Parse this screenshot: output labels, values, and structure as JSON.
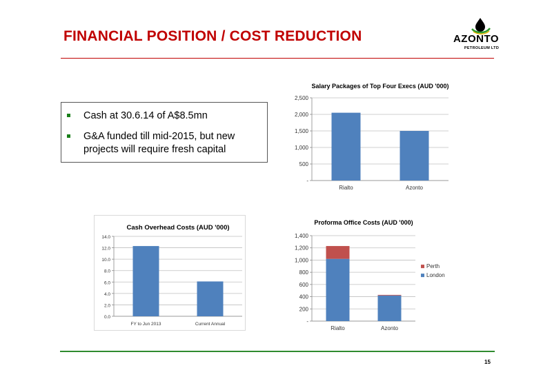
{
  "slide": {
    "title": "FINANCIAL POSITION / COST REDUCTION",
    "page_number": "15",
    "accent_color": "#c00000",
    "footer_color": "#2e8b2e"
  },
  "logo": {
    "name": "AZONTO",
    "subtitle": "PETROLEUM LTD",
    "icon": "oil-drop-icon"
  },
  "bullets": [
    "Cash at 30.6.14 of A$8.5mn",
    "G&A funded till mid-2015, but new projects will require fresh capital"
  ],
  "chart_data": [
    {
      "type": "bar",
      "title": "Salary Packages of Top Four Execs (AUD '000)",
      "categories": [
        "Rialto",
        "Azonto"
      ],
      "series": [
        {
          "values": [
            2050,
            1500
          ],
          "color": "#4f81bd"
        }
      ],
      "ylim": [
        0,
        2500
      ],
      "yticks": [
        0,
        500,
        1000,
        1500,
        2000,
        2500
      ],
      "ytick_labels": [
        "-",
        "500",
        "1,000",
        "1,500",
        "2,000",
        "2,500"
      ],
      "grid": true,
      "legend": "none"
    },
    {
      "type": "bar",
      "title": "Cash Overhead Costs (AUD '000)",
      "categories": [
        "FY to Jun 2013",
        "Current Annual"
      ],
      "series": [
        {
          "values": [
            12.3,
            6.1
          ],
          "color": "#4f81bd"
        }
      ],
      "ylim": [
        0,
        14
      ],
      "yticks": [
        0,
        2,
        4,
        6,
        8,
        10,
        12,
        14
      ],
      "ytick_labels": [
        "0.0",
        "2.0",
        "4.0",
        "6.0",
        "8.0",
        "10.0",
        "12.0",
        "14.0"
      ],
      "grid": true,
      "legend": "none"
    },
    {
      "type": "bar",
      "stacked": true,
      "title": "Proforma Office Costs (AUD '000)",
      "categories": [
        "Rialto",
        "Azonto"
      ],
      "series": [
        {
          "name": "London",
          "values": [
            1020,
            420
          ],
          "color": "#4f81bd"
        },
        {
          "name": "Perth",
          "values": [
            210,
            10
          ],
          "color": "#c0504d"
        }
      ],
      "ylim": [
        0,
        1400
      ],
      "yticks": [
        0,
        200,
        400,
        600,
        800,
        1000,
        1200,
        1400
      ],
      "ytick_labels": [
        "-",
        "200",
        "400",
        "600",
        "800",
        "1,000",
        "1,200",
        "1,400"
      ],
      "grid": true,
      "legend": "right",
      "legend_order": [
        "Perth",
        "London"
      ]
    }
  ]
}
